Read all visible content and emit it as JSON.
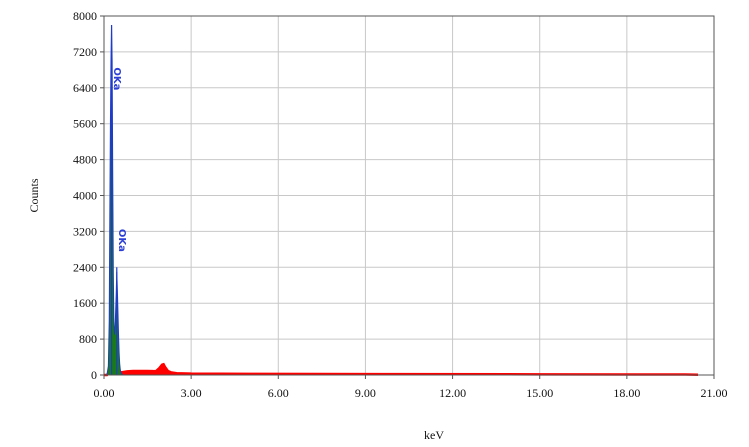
{
  "chart_data": {
    "type": "area",
    "title": "",
    "xlabel": "keV",
    "ylabel": "Counts",
    "xlim": [
      0,
      21
    ],
    "ylim": [
      0,
      8000
    ],
    "xticks": [
      0,
      3,
      6,
      9,
      12,
      15,
      18,
      21
    ],
    "xtick_labels": [
      "0.00",
      "3.00",
      "6.00",
      "9.00",
      "12.00",
      "15.00",
      "18.00",
      "21.00"
    ],
    "yticks": [
      0,
      800,
      1600,
      2400,
      3200,
      4000,
      4800,
      5600,
      6400,
      7200,
      8000
    ],
    "ytick_labels": [
      "0",
      "800",
      "1600",
      "2400",
      "3200",
      "4000",
      "4800",
      "5600",
      "6400",
      "7200",
      "8000"
    ],
    "grid": true,
    "legend": "none",
    "colors": {
      "background_spectrum": "#ff0000",
      "peak_fill": "#1a7a1a",
      "peak_outline": "#1e3cc8",
      "grid": "#c8c8c8",
      "frame": "#555555",
      "peak_label": "#2b3fd6"
    },
    "series": [
      {
        "role": "background-spectrum",
        "x": [
          0.0,
          0.1,
          0.15,
          0.2,
          0.6,
          0.7,
          0.8,
          1.0,
          1.5,
          1.7,
          1.8,
          1.9,
          2.0,
          2.05,
          2.1,
          2.2,
          2.3,
          2.5,
          3.0,
          5.0,
          10.0,
          15.0,
          20.0,
          20.45
        ],
        "y": [
          0,
          0,
          40,
          60,
          60,
          70,
          80,
          90,
          90,
          85,
          90,
          150,
          230,
          240,
          180,
          90,
          60,
          40,
          30,
          25,
          20,
          15,
          10,
          5
        ]
      },
      {
        "role": "peak-envelope",
        "x": [
          0.1,
          0.15,
          0.18,
          0.2,
          0.22,
          0.24,
          0.26,
          0.28,
          0.3,
          0.32,
          0.34,
          0.36,
          0.38,
          0.4,
          0.42,
          0.44,
          0.46,
          0.48,
          0.5,
          0.52,
          0.54,
          0.56,
          0.58,
          0.6,
          0.65
        ],
        "y": [
          0,
          200,
          1200,
          3500,
          5500,
          7000,
          7800,
          7000,
          4500,
          2300,
          1200,
          900,
          1000,
          1400,
          1800,
          2300,
          1900,
          1400,
          900,
          500,
          250,
          120,
          60,
          30,
          0
        ]
      }
    ],
    "annotations": [
      "OKa",
      "OKa"
    ],
    "annotation_points": [
      {
        "x": 0.24,
        "y": 6600
      },
      {
        "x": 0.42,
        "y": 3000
      }
    ]
  }
}
